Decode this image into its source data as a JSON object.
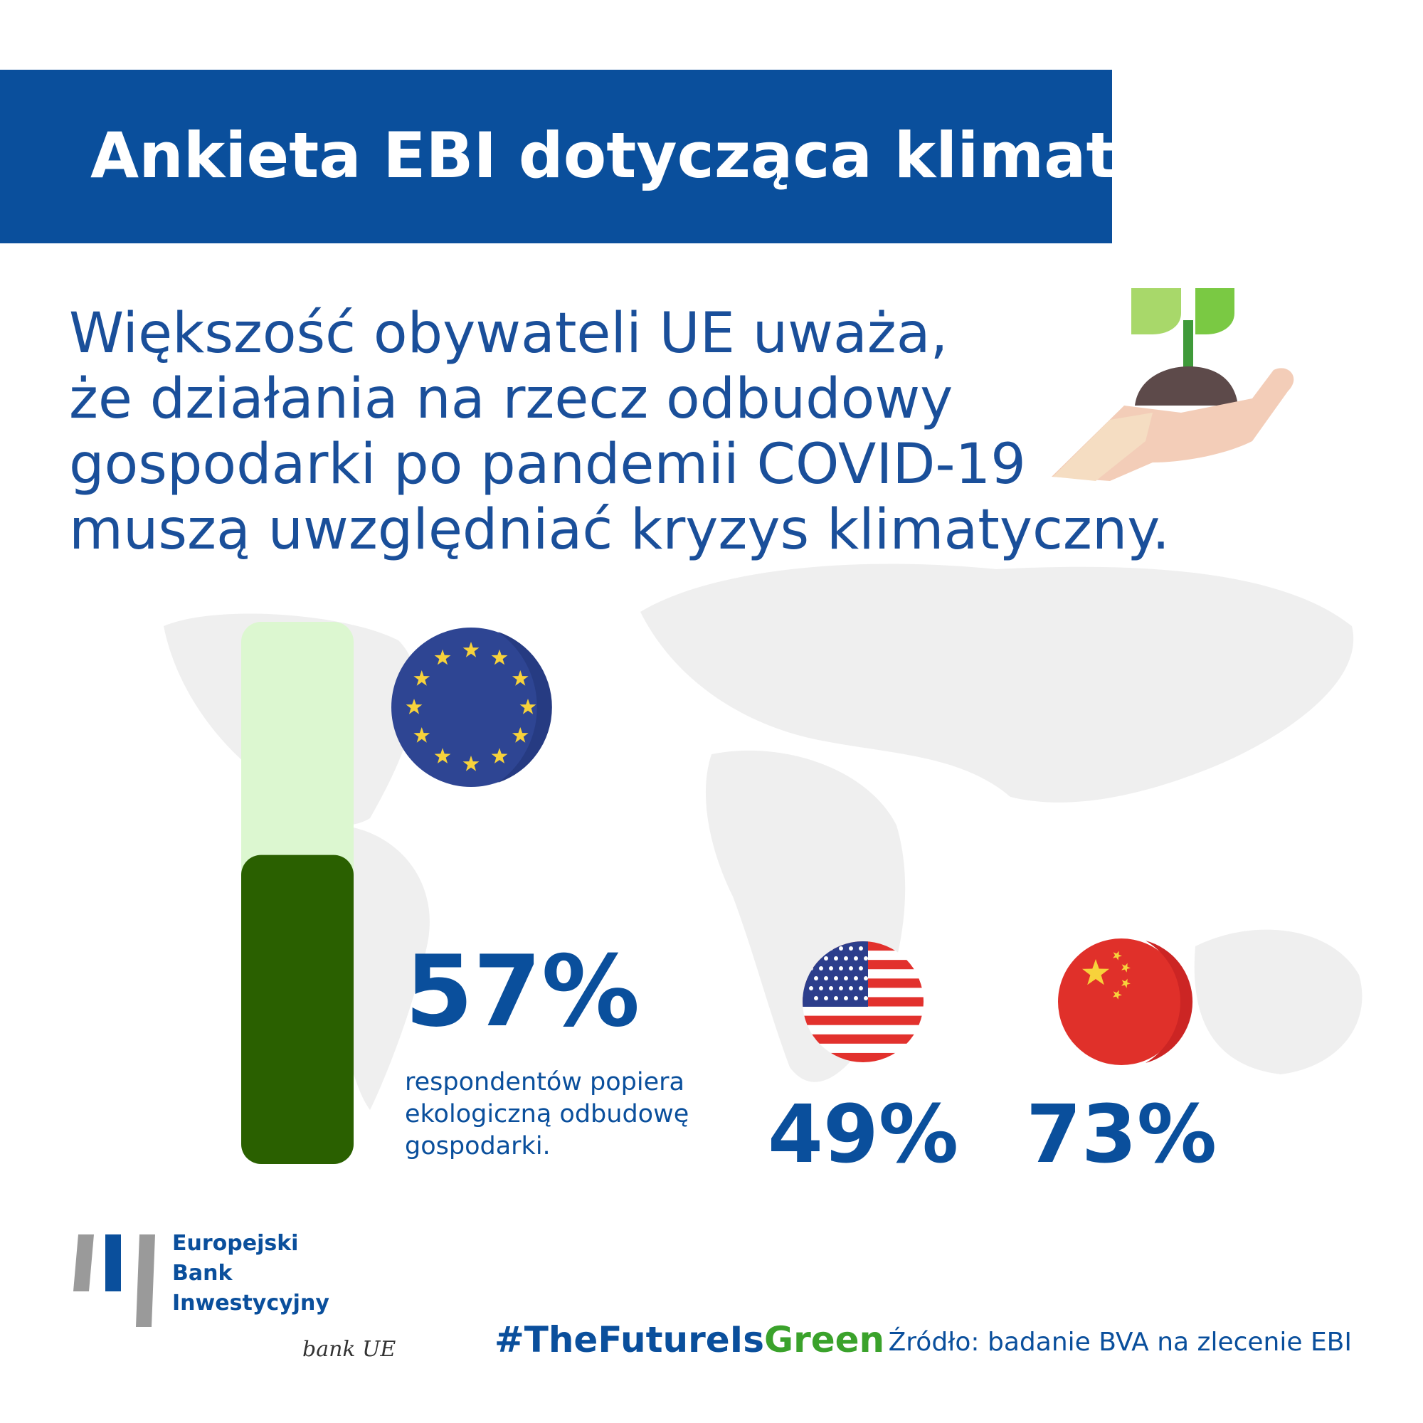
{
  "header": {
    "title": "Ankieta EBI dotycząca klimatu"
  },
  "subtitle": [
    "Większość obywateli UE uważa,",
    "że działania na rzecz odbudowy",
    "gospodarki po pandemii COVID-19",
    "muszą uwzględniać kryzys klimatyczny."
  ],
  "stats": {
    "eu": {
      "value": 57,
      "value_label": "57%",
      "text": [
        "respondentów popiera",
        "ekologiczną odbudowę",
        "gospodarki."
      ]
    },
    "us": {
      "value": 49,
      "value_label": "49%"
    },
    "china": {
      "value": 73,
      "value_label": "73%"
    }
  },
  "logo": {
    "lines": [
      "Europejski",
      "Bank",
      "Inwestycyjny"
    ],
    "tagline": "bank UE"
  },
  "hashtag": [
    "#TheFutureIs",
    "Green"
  ],
  "source": "Źródło: badanie BVA na zlecenie EBI"
}
